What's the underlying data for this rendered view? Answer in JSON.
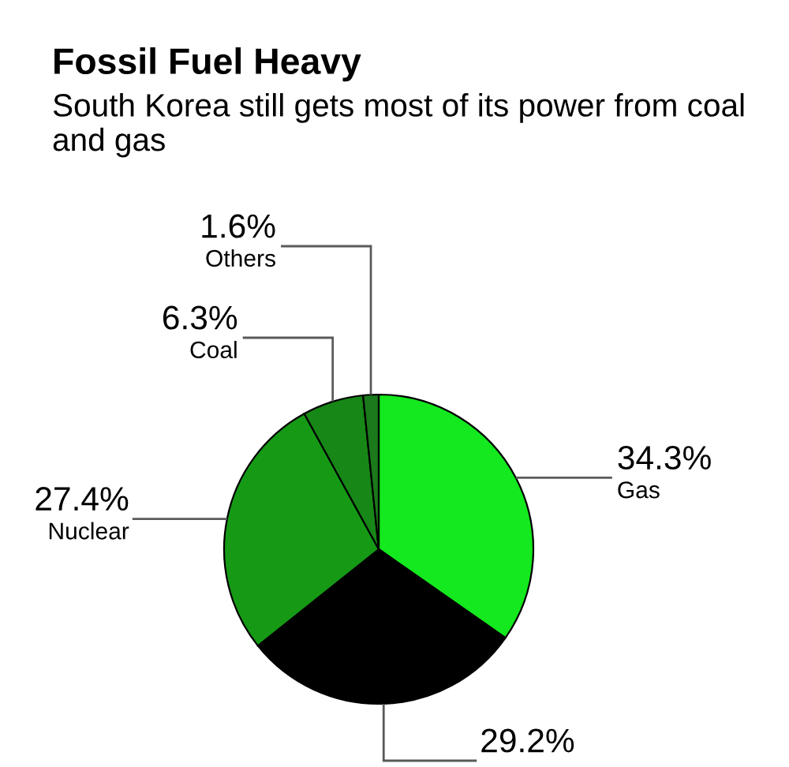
{
  "chart_data": {
    "type": "pie",
    "title": "Fossil Fuel Heavy",
    "subtitle": "South Korea still gets most of its power from coal and gas",
    "categories": [
      "Gas",
      null,
      "Nuclear",
      "Coal",
      "Others"
    ],
    "values": [
      34.3,
      29.2,
      27.4,
      6.3,
      1.6
    ],
    "colors": [
      "#14e81e",
      "#000000",
      "#169a16",
      "#178717",
      "#1b7a1b"
    ],
    "value_labels": [
      "34.3%",
      "29.2%",
      "27.4%",
      "6.3%",
      "1.6%"
    ]
  }
}
